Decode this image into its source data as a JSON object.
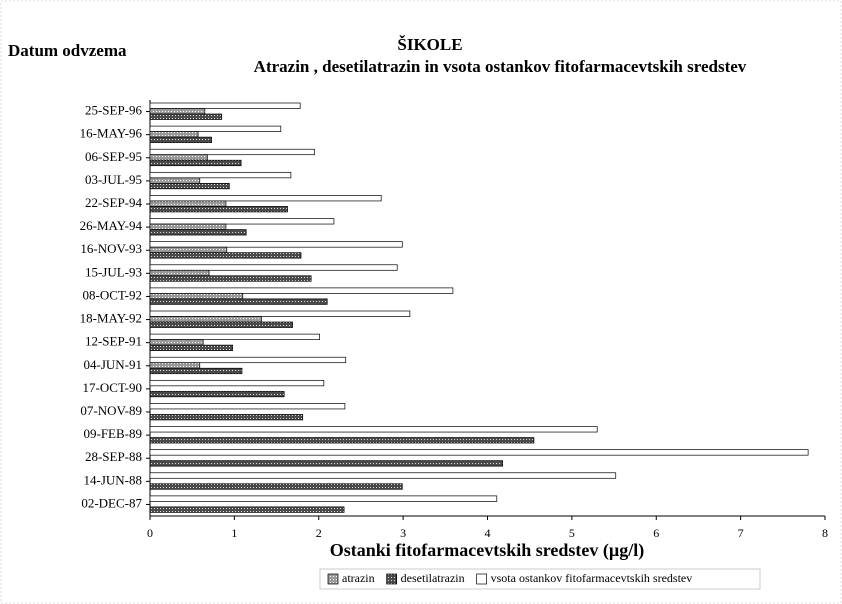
{
  "chart_data": {
    "type": "bar",
    "orientation": "horizontal",
    "title": "ŠIKOLE",
    "subtitle": "Atrazin , desetilatrazin in vsota ostankov fitofarmacevtskih sredstev",
    "y_label": "Datum odvzema",
    "x_label": "Ostanki fitofarmacevtskih sredstev (µg/l)",
    "categories": [
      "25-SEP-96",
      "16-MAY-96",
      "06-SEP-95",
      "03-JUL-95",
      "22-SEP-94",
      "26-MAY-94",
      "16-NOV-93",
      "15-JUL-93",
      "08-OCT-92",
      "18-MAY-92",
      "12-SEP-91",
      "04-JUN-91",
      "17-OCT-90",
      "07-NOV-89",
      "09-FEB-89",
      "28-SEP-88",
      "14-JUN-88",
      "02-DEC-87"
    ],
    "series": [
      {
        "name": "atrazin",
        "color": "#9a9a9a",
        "values": [
          0.65,
          0.57,
          0.68,
          0.59,
          0.9,
          0.9,
          0.91,
          0.7,
          1.1,
          1.32,
          0.63,
          0.59,
          0,
          0,
          0,
          0,
          0,
          0
        ]
      },
      {
        "name": "desetilatrazin",
        "color": "#4a4a4a",
        "values": [
          0.85,
          0.73,
          1.08,
          0.94,
          1.63,
          1.14,
          1.79,
          1.91,
          2.1,
          1.69,
          0.98,
          1.09,
          1.59,
          1.81,
          4.55,
          4.18,
          2.99,
          2.3
        ]
      },
      {
        "name": "vsota ostankov fitofarmacevtskih sredstev",
        "color": "#ffffff",
        "values": [
          1.78,
          1.55,
          1.95,
          1.67,
          2.74,
          2.18,
          2.99,
          2.93,
          3.59,
          3.08,
          2.01,
          2.32,
          2.06,
          2.31,
          5.3,
          7.8,
          5.52,
          4.11
        ]
      }
    ],
    "xlim": [
      0,
      8
    ],
    "xticks": [
      0,
      1,
      2,
      3,
      4,
      5,
      6,
      7,
      8
    ]
  }
}
